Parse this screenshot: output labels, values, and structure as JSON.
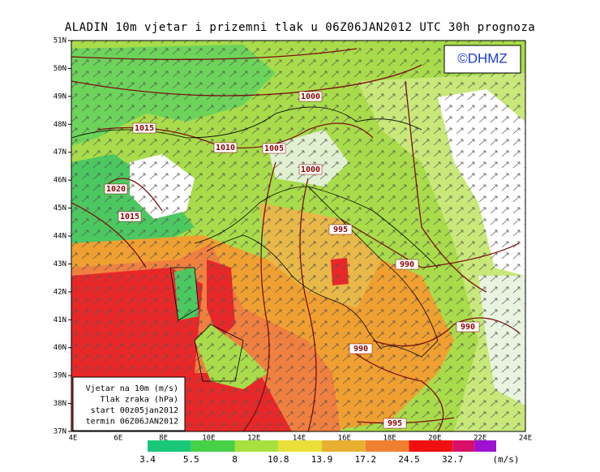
{
  "header": {
    "title": "ALADIN 10m vjetar i prizemni tlak u 06Z06JAN2012 UTC 30h prognoza",
    "logo": "©DHMZ"
  },
  "map": {
    "lat_labels": [
      "51N",
      "50N",
      "49N",
      "48N",
      "47N",
      "46N",
      "45N",
      "44N",
      "43N",
      "42N",
      "41N",
      "40N",
      "39N",
      "38N",
      "37N"
    ],
    "lon_labels": [
      "4E",
      "6E",
      "8E",
      "10E",
      "12E",
      "14E",
      "16E",
      "18E",
      "20E",
      "22E",
      "24E"
    ],
    "isobar_labels": [
      "1000",
      "1015",
      "1010",
      "1005",
      "1000",
      "1020",
      "1015",
      "995",
      "990",
      "990",
      "990",
      "995"
    ]
  },
  "info_box": {
    "lines": [
      "Vjetar na 10m (m/s)",
      "Tlak zraka (hPa)",
      "start 00z05jan2012",
      "termin 06Z06JAN2012"
    ]
  },
  "colorbar": {
    "labels": [
      3.4,
      5.5,
      8,
      10.8,
      13.9,
      17.2,
      24.5,
      32.7
    ],
    "unit": "(m/s)"
  }
}
